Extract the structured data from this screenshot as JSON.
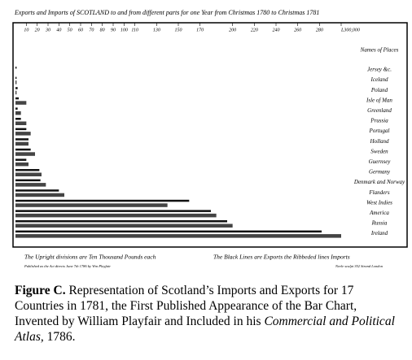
{
  "chart_data": {
    "type": "hbar",
    "title": "Exports and Imports of SCOTLAND to and from different parts for one Year from Christmas 1780 to Christmas 1781",
    "names_header": "Names of Places",
    "categories": [
      "Jersey &c.",
      "Iceland",
      "Poland",
      "Isle of Man",
      "Greenland",
      "Prussia",
      "Portugal",
      "Holland",
      "Sweden",
      "Guernsey",
      "Germany",
      "Denmark and Norway",
      "Flanders",
      "West Indies",
      "America",
      "Russia",
      "Ireland"
    ],
    "series": [
      {
        "color": "#111111",
        "values": [
          1,
          1,
          2,
          3,
          2,
          5,
          10,
          12,
          14,
          10,
          22,
          23,
          40,
          160,
          180,
          195,
          282
        ]
      },
      {
        "color": "#444444",
        "values": [
          0,
          1,
          1,
          10,
          5,
          10,
          14,
          12,
          18,
          12,
          24,
          28,
          45,
          140,
          185,
          200,
          300
        ]
      }
    ],
    "xlim": [
      0,
      300
    ],
    "xticks": [
      10,
      20,
      30,
      40,
      50,
      60,
      70,
      80,
      90,
      100,
      110,
      130,
      150,
      170,
      200,
      220,
      240,
      260,
      280,
      {
        "value": 300,
        "label": "L300,000"
      }
    ],
    "footnote_left": "The Upright divisions are Ten Thousand Pounds each",
    "footnote_right": "The Black Lines are Exports the Ribbeded lines Imports",
    "publisher": "Published as the Act directs June 7th 1786 by Wm Playfair",
    "engraver": "Neele sculpt 352 Strand London"
  },
  "caption": {
    "label": "Figure C.",
    "text": "Representation of Scotland’s Imports and Exports for 17 Countries in 1781, the First Published Appearance of the Bar Chart, Invented by William Playfair and Included in his",
    "italic": "Commercial and Political Atlas,",
    "end": "1786."
  }
}
